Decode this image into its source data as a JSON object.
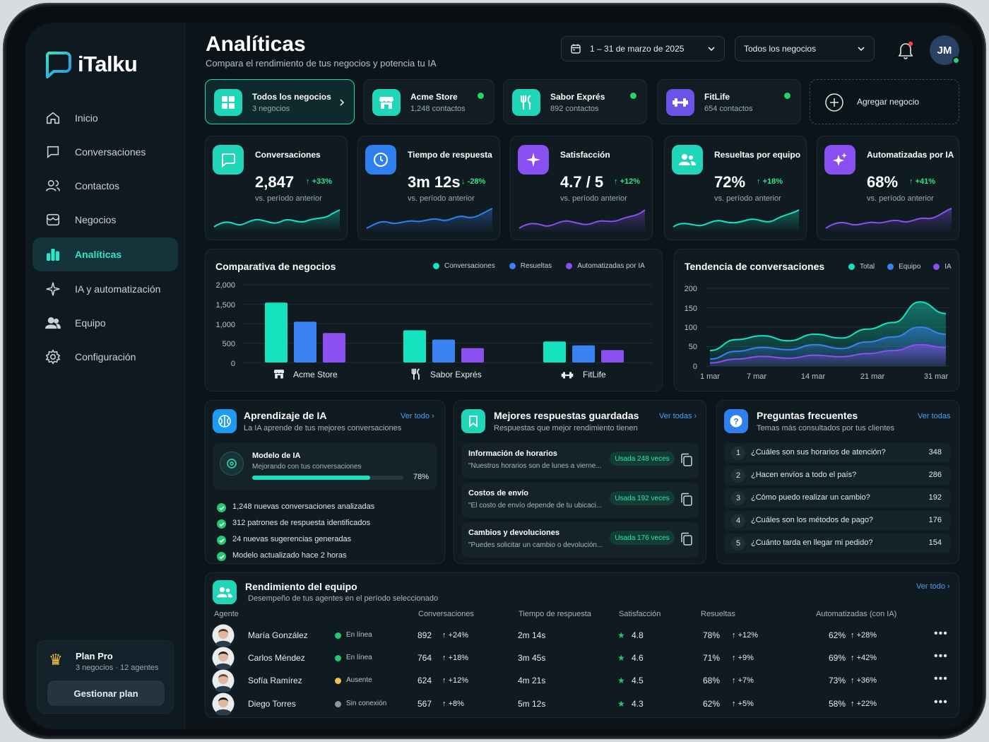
{
  "app": {
    "name": "iTalku"
  },
  "sidebar": {
    "items": [
      {
        "label": "Inicio",
        "icon": "home-icon"
      },
      {
        "label": "Conversaciones",
        "icon": "chat-icon"
      },
      {
        "label": "Contactos",
        "icon": "contacts-icon"
      },
      {
        "label": "Negocios",
        "icon": "store-icon"
      },
      {
        "label": "Analíticas",
        "icon": "bar-chart-icon"
      },
      {
        "label": "IA y automatización",
        "icon": "sparkle-icon"
      },
      {
        "label": "Equipo",
        "icon": "team-icon"
      },
      {
        "label": "Configuración",
        "icon": "gear-icon"
      }
    ],
    "active_index": 4,
    "plan": {
      "title": "Plan Pro",
      "subtitle": "3 negocios · 12 agentes",
      "button": "Gestionar plan"
    }
  },
  "header": {
    "title": "Analíticas",
    "subtitle": "Compara el rendimiento de tus negocios y potencia tu IA",
    "date_range": "1 – 31 de marzo de 2025",
    "business_filter": "Todos los negocios",
    "user_initials": "JM"
  },
  "businesses": [
    {
      "name": "Todos los negocios",
      "count": "3 negocios",
      "color": "#1fd6b8",
      "icon": "grid-icon"
    },
    {
      "name": "Acme Store",
      "count": "1,248 contactos",
      "color": "#1fd6b8",
      "icon": "store-icon"
    },
    {
      "name": "Sabor Exprés",
      "count": "892 contactos",
      "color": "#1fd6b8",
      "icon": "utensils-icon"
    },
    {
      "name": "FitLife",
      "count": "654 contactos",
      "color": "#6a54e8",
      "icon": "dumbbell-icon"
    }
  ],
  "add_business": "Agregar negocio",
  "kpis": [
    {
      "label": "Conversaciones",
      "value": "2,847",
      "delta": "+33%",
      "up": true,
      "vs": "vs. período anterior",
      "color": "#1fd6b8"
    },
    {
      "label": "Tiempo de respuesta",
      "value": "3m 12s",
      "delta": "-28%",
      "up": false,
      "vs": "vs. período anterior",
      "color": "#2f7ff0"
    },
    {
      "label": "Satisfacción",
      "value": "4.7 / 5",
      "delta": "+12%",
      "up": true,
      "vs": "vs. período anterior",
      "color": "#8a4ff0"
    },
    {
      "label": "Resueltas por equipo",
      "value": "72%",
      "delta": "+18%",
      "up": true,
      "vs": "vs. período anterior",
      "color": "#1fd6b8"
    },
    {
      "label": "Automatizadas por IA",
      "value": "68%",
      "delta": "+41%",
      "up": true,
      "vs": "vs. período anterior",
      "color": "#8a4ff0"
    }
  ],
  "chart_data": [
    {
      "type": "bar",
      "title": "Comparativa de negocios",
      "categories": [
        "Acme Store",
        "Sabor Exprés",
        "FitLife"
      ],
      "series": [
        {
          "name": "Conversaciones",
          "values": [
            1540,
            830,
            540
          ],
          "color": "#14e3c0"
        },
        {
          "name": "Resueltas",
          "values": [
            1050,
            590,
            440
          ],
          "color": "#3a82f0"
        },
        {
          "name": "Automatizadas por IA",
          "values": [
            760,
            370,
            320
          ],
          "color": "#8c4ff0"
        }
      ],
      "yticks": [
        "2,000",
        "1,500",
        "1,000",
        "500",
        "0"
      ],
      "ylim": [
        0,
        2000
      ]
    },
    {
      "type": "area",
      "title": "Tendencia de conversaciones",
      "x": [
        "1 mar",
        "4 mar",
        "7 mar",
        "10 mar",
        "14 mar",
        "17 mar",
        "21 mar",
        "24 mar",
        "27 mar",
        "31 mar"
      ],
      "xticks": [
        "1 mar",
        "7 mar",
        "14 mar",
        "21 mar",
        "31 mar"
      ],
      "series": [
        {
          "name": "Total",
          "values": [
            40,
            68,
            78,
            65,
            82,
            72,
            95,
            112,
            165,
            135
          ],
          "color": "#14e3c0"
        },
        {
          "name": "Equipo",
          "values": [
            18,
            38,
            48,
            42,
            55,
            45,
            62,
            75,
            100,
            82
          ],
          "color": "#3a82f0"
        },
        {
          "name": "IA",
          "values": [
            8,
            18,
            25,
            20,
            28,
            24,
            32,
            40,
            55,
            48
          ],
          "color": "#8c4ff0"
        }
      ],
      "yticks": [
        "200",
        "150",
        "100",
        "50",
        "0"
      ],
      "ylim": [
        0,
        200
      ]
    }
  ],
  "ai_learning": {
    "title": "Aprendizaje de IA",
    "subtitle": "La IA aprende de tus mejores conversaciones",
    "link": "Ver todo",
    "model_title": "Modelo de IA",
    "model_sub": "Mejorando con tus conversaciones",
    "progress": 78,
    "progress_label": "78%",
    "bullets": [
      "1,248 nuevas conversaciones analizadas",
      "312 patrones de respuesta identificados",
      "24 nuevas sugerencias generadas",
      "Modelo actualizado hace 2 horas"
    ]
  },
  "saved_responses": {
    "title": "Mejores respuestas guardadas",
    "subtitle": "Respuestas que mejor rendimiento tienen",
    "link": "Ver todas",
    "items": [
      {
        "title": "Información de horarios",
        "preview": "\"Nuestros horarios son de lunes a vierne...",
        "usage": "Usada 248 veces"
      },
      {
        "title": "Costos de envío",
        "preview": "\"El costo de envío depende de tu ubicaci...",
        "usage": "Usada 192 veces"
      },
      {
        "title": "Cambios y devoluciones",
        "preview": "\"Puedes solicitar un cambio o devolución...",
        "usage": "Usada 176 veces"
      }
    ]
  },
  "faq": {
    "title": "Preguntas frecuentes",
    "subtitle": "Temas más consultados por tus clientes",
    "link": "Ver todas",
    "items": [
      {
        "n": "1",
        "q": "¿Cuáles son sus horarios de atención?",
        "c": "348"
      },
      {
        "n": "2",
        "q": "¿Hacen envíos a todo el país?",
        "c": "286"
      },
      {
        "n": "3",
        "q": "¿Cómo puedo realizar un cambio?",
        "c": "192"
      },
      {
        "n": "4",
        "q": "¿Cuáles son los métodos de pago?",
        "c": "176"
      },
      {
        "n": "5",
        "q": "¿Cuánto tarda en llegar mi pedido?",
        "c": "154"
      }
    ]
  },
  "team": {
    "title": "Rendimiento del equipo",
    "subtitle": "Desempeño de tus agentes en el período seleccionado",
    "link": "Ver todo",
    "headers": [
      "Agente",
      "Conversaciones",
      "Tiempo de respuesta",
      "Satisfacción",
      "Resueltas",
      "Automatizadas (con IA)"
    ],
    "rows": [
      {
        "name": "María González",
        "status": "En línea",
        "status_color": "#22c96e",
        "conv": "892",
        "conv_d": "+24%",
        "time": "2m 14s",
        "sat": "4.8",
        "res": "78%",
        "res_d": "+12%",
        "auto": "62%",
        "auto_d": "+28%",
        "hair": "#5a3a2a"
      },
      {
        "name": "Carlos Méndez",
        "status": "En línea",
        "status_color": "#22c96e",
        "conv": "764",
        "conv_d": "+18%",
        "time": "3m 45s",
        "sat": "4.6",
        "res": "71%",
        "res_d": "+9%",
        "auto": "69%",
        "auto_d": "+42%",
        "hair": "#2a1d16"
      },
      {
        "name": "Sofía Ramírez",
        "status": "Ausente",
        "status_color": "#f2c14e",
        "conv": "624",
        "conv_d": "+12%",
        "time": "4m 21s",
        "sat": "4.5",
        "res": "68%",
        "res_d": "+7%",
        "auto": "73%",
        "auto_d": "+36%",
        "hair": "#6b4630"
      },
      {
        "name": "Diego Torres",
        "status": "Sin conexión",
        "status_color": "#8b98a1",
        "conv": "567",
        "conv_d": "+8%",
        "time": "5m 12s",
        "sat": "4.3",
        "res": "62%",
        "res_d": "+5%",
        "auto": "58%",
        "auto_d": "+22%",
        "hair": "#1f1813"
      }
    ]
  }
}
